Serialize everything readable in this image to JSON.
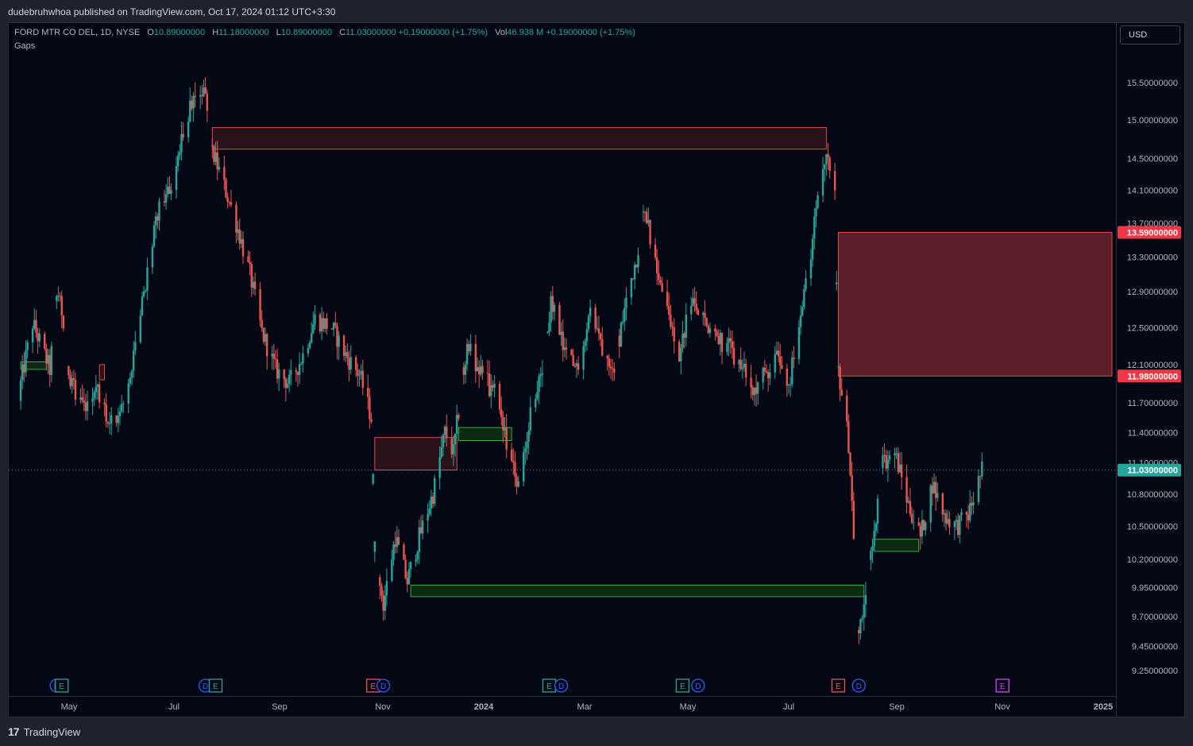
{
  "header": {
    "published": "dudebruhwhoa published on TradingView.com, Oct 17, 2024 01:12 UTC+3:30"
  },
  "legend": {
    "symbol": "FORD MTR CO DEL, 1D, NYSE",
    "o_label": "O",
    "o": "10.89000000",
    "h_label": "H",
    "h": "11.18000000",
    "l_label": "L",
    "l": "10.89000000",
    "c_label": "C",
    "c": "11.03000000",
    "change": "+0.19000000 (+1.75%)",
    "vol_label": "Vol",
    "vol": "46.938 M",
    "vol_change": "+0.19000000 (+1.75%)",
    "indicator": "Gaps"
  },
  "currency_button": "USD",
  "footer": {
    "brand": "TradingView"
  },
  "colors": {
    "up": "#26a69a",
    "down": "#ef5350",
    "gap_down_fill": "#5c1f2a",
    "gap_up_fill": "#0b2a12",
    "background": "#040815",
    "price_line": "#26a69a"
  },
  "chart_data": {
    "type": "candlestick",
    "symbol": "FORD MTR CO DEL",
    "interval": "1D",
    "exchange": "NYSE",
    "currency": "USD",
    "price_axis_labels": [
      "15.50000000",
      "15.00000000",
      "14.50000000",
      "14.10000000",
      "13.70000000",
      "13.30000000",
      "12.90000000",
      "12.50000000",
      "12.10000000",
      "11.70000000",
      "11.40000000",
      "11.10000000",
      "10.80000000",
      "10.50000000",
      "10.20000000",
      "9.95000000",
      "9.70000000",
      "9.45000000",
      "9.25000000"
    ],
    "x_axis_labels": [
      "May",
      "Jul",
      "Sep",
      "Nov",
      "2024",
      "Mar",
      "May",
      "Jul",
      "Sep",
      "Nov",
      "2025"
    ],
    "last_price": {
      "label": "11.03000000",
      "value": 11.03
    },
    "gap_price_labels": [
      {
        "label": "13.59000000",
        "value": 13.59
      },
      {
        "label": "11.98000000",
        "value": 11.98
      }
    ],
    "path": [
      [
        "2023-04-01",
        11.72
      ],
      [
        "2023-04-10",
        12.55
      ],
      [
        "2023-04-20",
        12.05
      ],
      [
        "2023-04-25",
        12.95
      ],
      [
        "2023-05-02",
        11.92
      ],
      [
        "2023-05-10",
        11.7
      ],
      [
        "2023-05-18",
        11.85
      ],
      [
        "2023-05-25",
        11.45
      ],
      [
        "2023-06-01",
        11.6
      ],
      [
        "2023-06-08",
        12.15
      ],
      [
        "2023-06-15",
        13.0
      ],
      [
        "2023-06-22",
        13.8
      ],
      [
        "2023-06-30",
        14.2
      ],
      [
        "2023-07-05",
        14.6
      ],
      [
        "2023-07-10",
        15.1
      ],
      [
        "2023-07-14",
        15.25
      ],
      [
        "2023-07-19",
        15.4
      ],
      [
        "2023-07-24",
        14.6
      ],
      [
        "2023-07-31",
        14.15
      ],
      [
        "2023-08-07",
        13.7
      ],
      [
        "2023-08-15",
        13.1
      ],
      [
        "2023-08-22",
        12.45
      ],
      [
        "2023-08-30",
        12.05
      ],
      [
        "2023-09-07",
        11.9
      ],
      [
        "2023-09-15",
        12.2
      ],
      [
        "2023-09-22",
        12.6
      ],
      [
        "2023-10-02",
        12.5
      ],
      [
        "2023-10-10",
        12.2
      ],
      [
        "2023-10-18",
        12.0
      ],
      [
        "2023-10-25",
        11.55
      ],
      [
        "2023-10-27",
        10.3
      ],
      [
        "2023-11-01",
        9.8
      ],
      [
        "2023-11-08",
        10.4
      ],
      [
        "2023-11-15",
        10.0
      ],
      [
        "2023-11-22",
        10.4
      ],
      [
        "2023-11-30",
        10.8
      ],
      [
        "2023-12-07",
        11.4
      ],
      [
        "2023-12-12",
        11.2
      ],
      [
        "2023-12-20",
        12.3
      ],
      [
        "2023-12-28",
        12.0
      ],
      [
        "2024-01-05",
        11.8
      ],
      [
        "2024-01-12",
        11.3
      ],
      [
        "2024-01-19",
        10.9
      ],
      [
        "2024-01-26",
        11.6
      ],
      [
        "2024-02-02",
        12.0
      ],
      [
        "2024-02-07",
        12.8
      ],
      [
        "2024-02-15",
        12.2
      ],
      [
        "2024-02-22",
        12.05
      ],
      [
        "2024-03-01",
        12.7
      ],
      [
        "2024-03-08",
        12.3
      ],
      [
        "2024-03-15",
        12.1
      ],
      [
        "2024-03-22",
        12.8
      ],
      [
        "2024-03-28",
        13.3
      ],
      [
        "2024-04-02",
        13.9
      ],
      [
        "2024-04-08",
        13.2
      ],
      [
        "2024-04-15",
        12.7
      ],
      [
        "2024-04-22",
        12.2
      ],
      [
        "2024-04-29",
        12.8
      ],
      [
        "2024-05-06",
        12.6
      ],
      [
        "2024-05-13",
        12.4
      ],
      [
        "2024-05-20",
        12.3
      ],
      [
        "2024-05-28",
        12.1
      ],
      [
        "2024-06-04",
        11.8
      ],
      [
        "2024-06-11",
        12.0
      ],
      [
        "2024-06-18",
        12.2
      ],
      [
        "2024-06-25",
        11.9
      ],
      [
        "2024-07-02",
        12.6
      ],
      [
        "2024-07-08",
        13.3
      ],
      [
        "2024-07-12",
        14.1
      ],
      [
        "2024-07-17",
        14.6
      ],
      [
        "2024-07-22",
        14.0
      ],
      [
        "2024-07-24",
        12.05
      ],
      [
        "2024-07-30",
        11.3
      ],
      [
        "2024-08-05",
        9.55
      ],
      [
        "2024-08-12",
        10.2
      ],
      [
        "2024-08-19",
        11.1
      ],
      [
        "2024-08-26",
        11.2
      ],
      [
        "2024-09-03",
        10.7
      ],
      [
        "2024-09-10",
        10.4
      ],
      [
        "2024-09-17",
        10.9
      ],
      [
        "2024-09-24",
        10.6
      ],
      [
        "2024-10-01",
        10.5
      ],
      [
        "2024-10-08",
        10.6
      ],
      [
        "2024-10-16",
        11.03
      ]
    ],
    "gaps": [
      {
        "type": "down",
        "from": "2023-07-24",
        "to": "2024-07-17",
        "top": 14.9,
        "bottom": 14.62
      },
      {
        "type": "down",
        "from": "2024-07-24",
        "to": "2024-12-31",
        "top": 13.59,
        "bottom": 11.98
      },
      {
        "type": "down",
        "from": "2023-10-27",
        "to": "2023-12-14",
        "top": 11.35,
        "bottom": 11.03
      },
      {
        "type": "up",
        "from": "2023-12-15",
        "to": "2024-01-15",
        "top": 11.45,
        "bottom": 11.32
      },
      {
        "type": "up",
        "from": "2023-11-17",
        "to": "2024-08-08",
        "top": 9.97,
        "bottom": 9.87
      },
      {
        "type": "up",
        "from": "2024-08-14",
        "to": "2024-09-09",
        "top": 10.38,
        "bottom": 10.27
      },
      {
        "type": "up",
        "from": "2023-04-03",
        "to": "2023-04-18",
        "top": 12.13,
        "bottom": 12.05
      },
      {
        "type": "down",
        "from": "2023-05-19",
        "to": "2023-05-22",
        "top": 12.1,
        "bottom": 11.94
      }
    ],
    "event_markers": [
      {
        "date": "2023-04-24",
        "kind": "D"
      },
      {
        "date": "2023-04-27",
        "kind": "E"
      },
      {
        "date": "2023-07-20",
        "kind": "D"
      },
      {
        "date": "2023-07-26",
        "kind": "E"
      },
      {
        "date": "2023-10-26",
        "kind": "E"
      },
      {
        "date": "2023-11-01",
        "kind": "D"
      },
      {
        "date": "2024-02-06",
        "kind": "E"
      },
      {
        "date": "2024-02-13",
        "kind": "D"
      },
      {
        "date": "2024-04-24",
        "kind": "E"
      },
      {
        "date": "2024-05-03",
        "kind": "D"
      },
      {
        "date": "2024-07-24",
        "kind": "E"
      },
      {
        "date": "2024-08-05",
        "kind": "D"
      },
      {
        "date": "2024-10-28",
        "kind": "E"
      }
    ]
  }
}
